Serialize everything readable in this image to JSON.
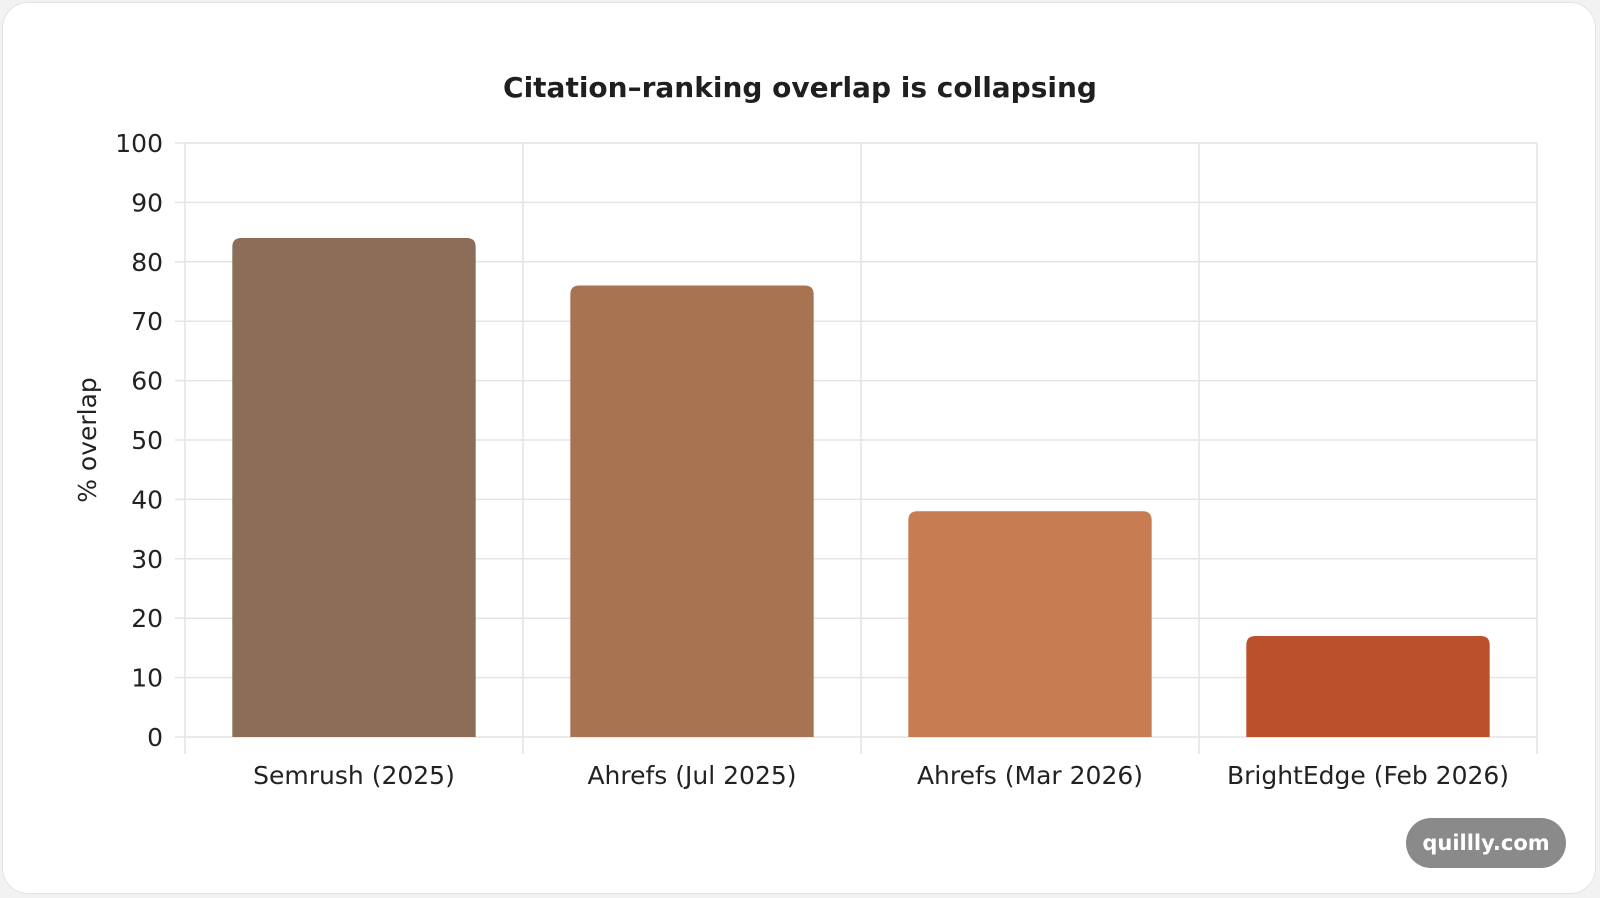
{
  "chart_data": {
    "type": "bar",
    "title": "Citation–ranking overlap is collapsing",
    "xlabel": "",
    "ylabel": "% overlap",
    "categories": [
      "Semrush (2025)",
      "Ahrefs (Jul 2025)",
      "Ahrefs (Mar 2026)",
      "BrightEdge (Feb 2026)"
    ],
    "values": [
      84,
      76,
      38,
      17
    ],
    "ylim": [
      0,
      100
    ],
    "yticks": [
      0,
      10,
      20,
      30,
      40,
      50,
      60,
      70,
      80,
      90,
      100
    ],
    "grid": true,
    "bar_colors": [
      "#8b6d58",
      "#a77351",
      "#c87c51",
      "#bb512c"
    ]
  },
  "watermark": "quillly.com"
}
